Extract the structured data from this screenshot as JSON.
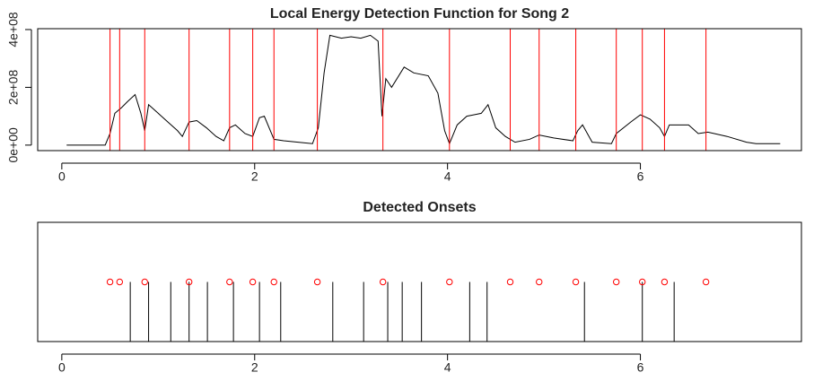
{
  "charts": [
    {
      "type": "line",
      "title": "Local Energy Detection Function for Song 2",
      "xlim": [
        -0.25,
        7.67
      ],
      "xticks": [
        0,
        2,
        4,
        6
      ],
      "ylim": [
        -19000000.0,
        403000000.0
      ],
      "yticks": [
        {
          "value": 0,
          "label": "0e+00"
        },
        {
          "value": 200000000.0,
          "label": "2e+08"
        },
        {
          "value": 400000000.0,
          "label": "4e+08"
        }
      ],
      "series": [
        {
          "mode": "line",
          "color": "#000000",
          "x": [
            0.05,
            0.45,
            0.5,
            0.55,
            0.62,
            0.68,
            0.76,
            0.82,
            0.86,
            0.9,
            1.0,
            1.1,
            1.2,
            1.25,
            1.32,
            1.4,
            1.5,
            1.6,
            1.68,
            1.74,
            1.8,
            1.9,
            1.98,
            2.05,
            2.1,
            2.2,
            2.3,
            2.45,
            2.6,
            2.66,
            2.72,
            2.78,
            2.9,
            3.0,
            3.1,
            3.2,
            3.28,
            3.32,
            3.36,
            3.42,
            3.55,
            3.65,
            3.8,
            3.9,
            3.97,
            4.02,
            4.1,
            4.2,
            4.35,
            4.42,
            4.5,
            4.6,
            4.7,
            4.85,
            4.95,
            5.1,
            5.3,
            5.35,
            5.4,
            5.5,
            5.7,
            5.75,
            5.9,
            6.0,
            6.1,
            6.2,
            6.25,
            6.3,
            6.5,
            6.6,
            6.7,
            6.9,
            7.1,
            7.2,
            7.45
          ],
          "values": [
            0,
            0,
            40000000.0,
            110000000.0,
            130000000.0,
            150000000.0,
            175000000.0,
            110000000.0,
            50000000.0,
            140000000.0,
            110000000.0,
            80000000.0,
            50000000.0,
            30000000.0,
            80000000.0,
            85000000.0,
            60000000.0,
            30000000.0,
            15000000.0,
            60000000.0,
            70000000.0,
            40000000.0,
            30000000.0,
            95000000.0,
            100000000.0,
            20000000.0,
            15000000.0,
            10000000.0,
            5000000.0,
            60000000.0,
            250000000.0,
            380000000.0,
            370000000.0,
            375000000.0,
            370000000.0,
            380000000.0,
            360000000.0,
            100000000.0,
            230000000.0,
            200000000.0,
            270000000.0,
            250000000.0,
            240000000.0,
            180000000.0,
            50000000.0,
            5000000.0,
            70000000.0,
            100000000.0,
            110000000.0,
            140000000.0,
            60000000.0,
            30000000.0,
            10000000.0,
            20000000.0,
            35000000.0,
            25000000.0,
            15000000.0,
            50000000.0,
            70000000.0,
            10000000.0,
            5000000.0,
            40000000.0,
            80000000.0,
            105000000.0,
            90000000.0,
            60000000.0,
            30000000.0,
            70000000.0,
            70000000.0,
            40000000.0,
            45000000.0,
            30000000.0,
            10000000.0,
            5000000.0,
            5000000.0
          ]
        },
        {
          "mode": "vlines",
          "color": "#ff0000",
          "x": [
            0.5,
            0.6,
            0.86,
            1.32,
            1.74,
            1.98,
            2.2,
            2.65,
            3.33,
            4.02,
            4.65,
            4.95,
            5.33,
            5.75,
            6.02,
            6.25,
            6.68
          ]
        }
      ]
    },
    {
      "type": "scatter",
      "title": "Detected Onsets",
      "xlim": [
        -0.25,
        7.67
      ],
      "xticks": [
        0,
        2,
        4,
        6
      ],
      "ylim": [
        0,
        2
      ],
      "series": [
        {
          "mode": "stems",
          "color": "#000000",
          "x": [
            0.71,
            0.9,
            1.13,
            1.32,
            1.51,
            1.78,
            2.05,
            2.27,
            2.81,
            3.13,
            3.38,
            3.53,
            3.73,
            4.23,
            4.41,
            5.42,
            6.02,
            6.35
          ],
          "values": [
            1,
            1,
            1,
            1,
            1,
            1,
            1,
            1,
            1,
            1,
            1,
            1,
            1,
            1,
            1,
            1,
            1,
            1
          ]
        },
        {
          "mode": "points",
          "color": "#ff0000",
          "x": [
            0.5,
            0.6,
            0.86,
            1.32,
            1.74,
            1.98,
            2.2,
            2.65,
            3.33,
            4.02,
            4.65,
            4.95,
            5.33,
            5.75,
            6.02,
            6.25,
            6.68
          ],
          "values": [
            1,
            1,
            1,
            1,
            1,
            1,
            1,
            1,
            1,
            1,
            1,
            1,
            1,
            1,
            1,
            1,
            1
          ]
        }
      ]
    }
  ]
}
